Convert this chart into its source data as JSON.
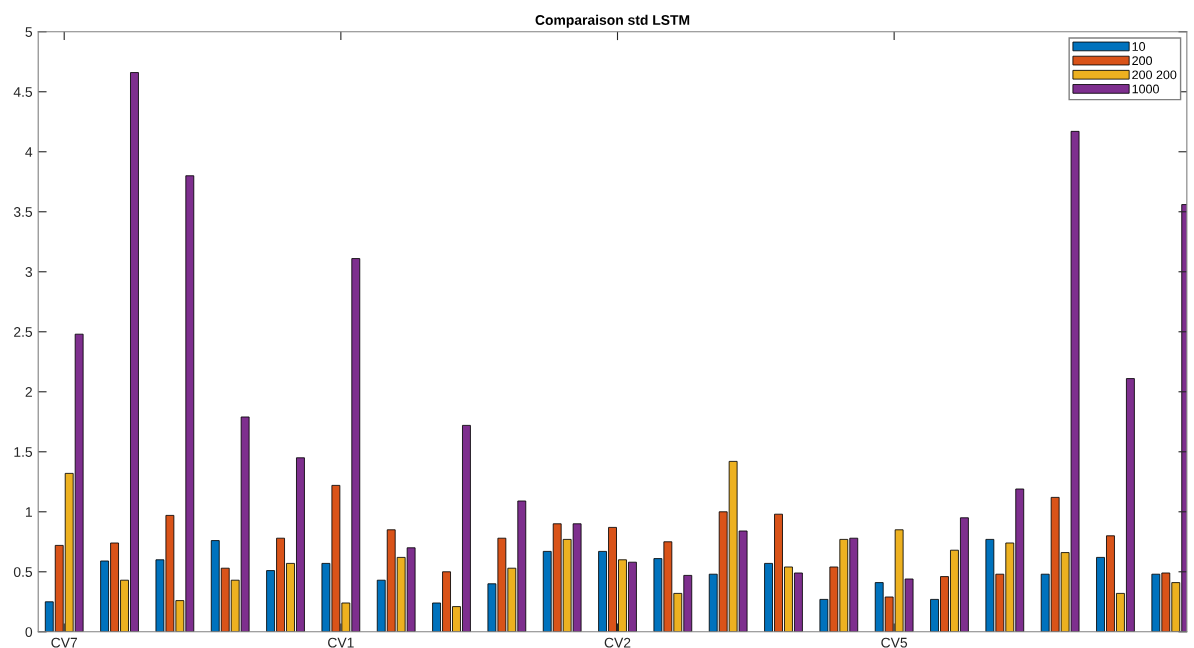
{
  "chart_data": {
    "type": "bar",
    "title": "Comparaison std LSTM",
    "categories": [
      "CV7",
      null,
      null,
      null,
      null,
      "CV1",
      null,
      null,
      null,
      null,
      "CV2",
      null,
      null,
      null,
      null,
      "CV5",
      null,
      null,
      null,
      null,
      null
    ],
    "series": [
      {
        "name": "10",
        "color": "#0072bd",
        "values": [
          0.25,
          0.59,
          0.6,
          0.76,
          0.51,
          0.57,
          0.43,
          0.24,
          0.4,
          0.67,
          0.67,
          0.61,
          0.48,
          0.57,
          0.27,
          0.41,
          0.27,
          0.77,
          0.48,
          0.62,
          0.48
        ]
      },
      {
        "name": "200",
        "color": "#d95319",
        "values": [
          0.72,
          0.74,
          0.97,
          0.53,
          0.78,
          1.22,
          0.85,
          0.5,
          0.78,
          0.9,
          0.87,
          0.75,
          1.0,
          0.98,
          0.54,
          0.29,
          0.46,
          0.48,
          1.12,
          0.8,
          0.49
        ]
      },
      {
        "name": "200 200",
        "color": "#edb120",
        "values": [
          1.32,
          0.43,
          0.26,
          0.43,
          0.57,
          0.24,
          0.62,
          0.21,
          0.53,
          0.77,
          0.6,
          0.32,
          1.42,
          0.54,
          0.77,
          0.85,
          0.68,
          0.74,
          0.66,
          0.32,
          0.41
        ]
      },
      {
        "name": "1000",
        "color": "#7e2f8e",
        "values": [
          2.48,
          4.66,
          3.8,
          1.79,
          1.45,
          3.11,
          0.7,
          1.72,
          1.09,
          0.9,
          0.58,
          0.47,
          0.84,
          0.49,
          0.78,
          0.44,
          0.95,
          1.19,
          4.17,
          2.11,
          3.56
        ]
      }
    ],
    "ylim": [
      0,
      5
    ],
    "yticks": [
      0,
      0.5,
      1,
      1.5,
      2,
      2.5,
      3,
      3.5,
      4,
      4.5,
      5
    ],
    "grid": false,
    "legend": "top right"
  }
}
